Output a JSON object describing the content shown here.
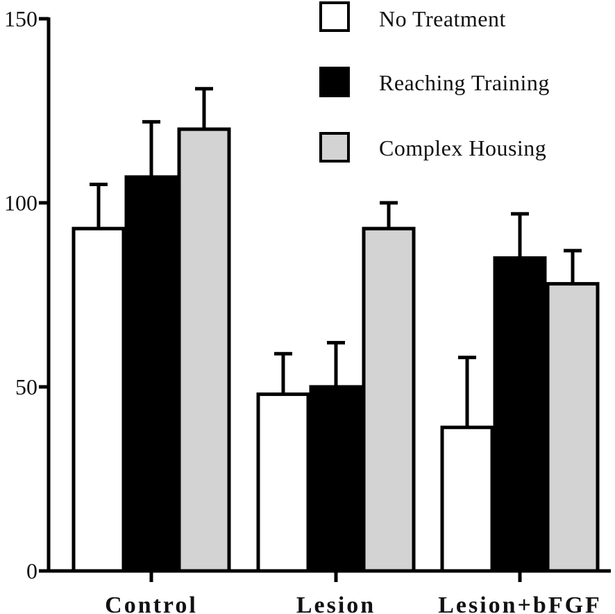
{
  "chart_data": {
    "type": "bar",
    "title": "",
    "xlabel": "",
    "ylabel": "",
    "ylim": [
      0,
      150
    ],
    "yticks": [
      0,
      50,
      100,
      150
    ],
    "grid": false,
    "legend_position": "top-right",
    "categories": [
      "Control",
      "Lesion",
      "Lesion+bFGF"
    ],
    "series": [
      {
        "name": "No Treatment",
        "color": "#ffffff",
        "values": [
          93,
          48,
          39
        ],
        "errors": [
          12,
          11,
          19
        ]
      },
      {
        "name": "Reaching Training",
        "color": "#000000",
        "values": [
          107,
          50,
          85
        ],
        "errors": [
          15,
          12,
          12
        ]
      },
      {
        "name": "Complex Housing",
        "color": "#d3d3d3",
        "values": [
          120,
          93,
          78
        ],
        "errors": [
          11,
          7,
          9
        ]
      }
    ]
  }
}
